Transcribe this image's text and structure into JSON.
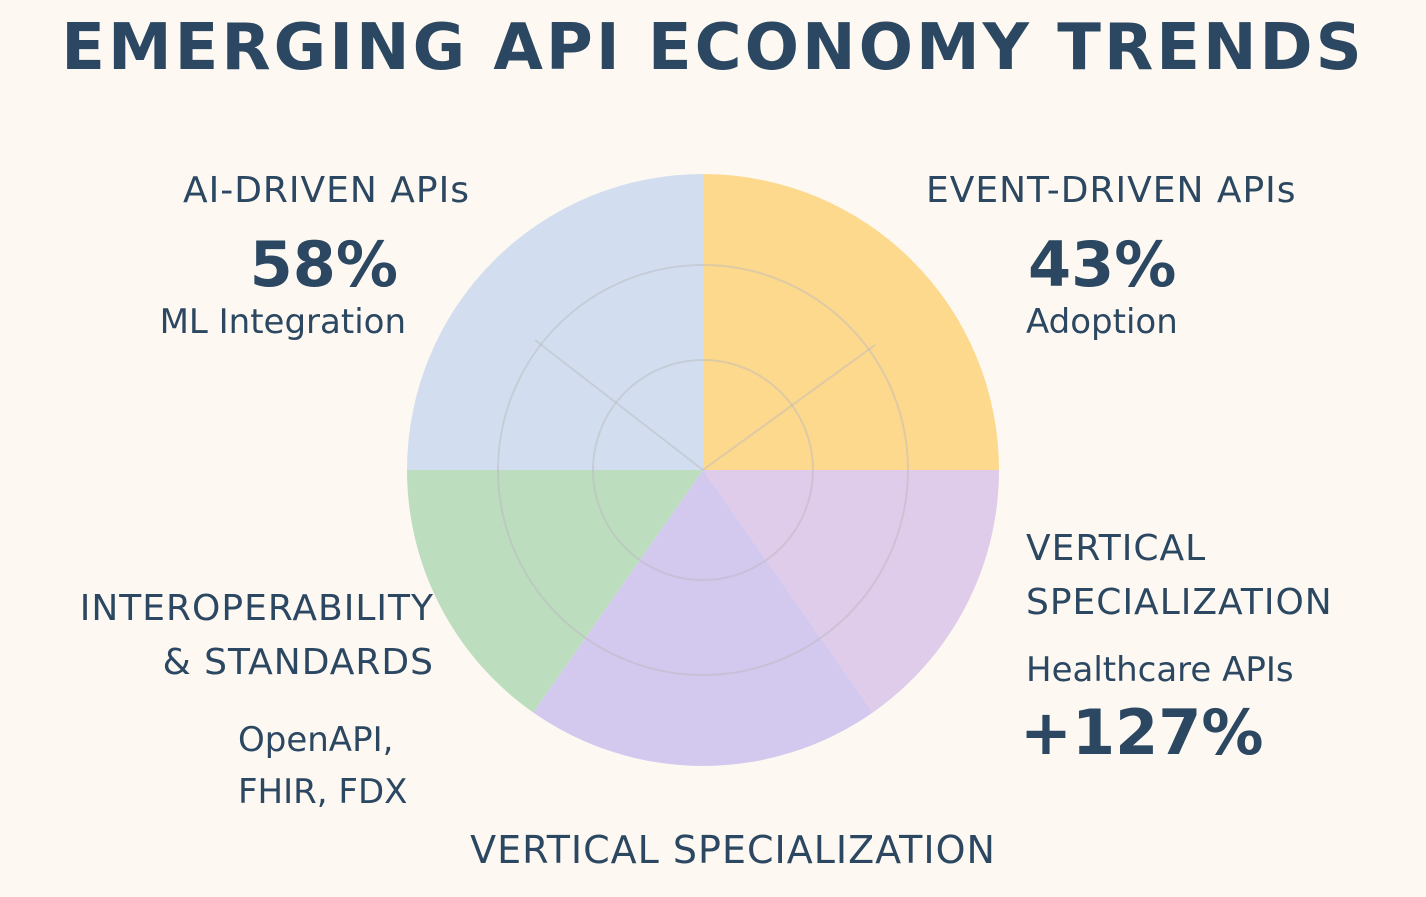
{
  "title": "EMERGING API ECONOMY TRENDS",
  "segments": [
    {
      "id": "ai",
      "heading": "AI-DRIVEN APIs",
      "value": "58%",
      "sub": "ML Integration",
      "color": "#d2deef"
    },
    {
      "id": "event",
      "heading": "EVENT-DRIVEN APIs",
      "value": "43%",
      "sub": "Adoption",
      "color": "#fdd98e"
    },
    {
      "id": "vertical",
      "heading_line1": "VERTICAL",
      "heading_line2": "SPECIALIZATION",
      "sub": "Healthcare APIs",
      "value": "+127%",
      "color": "#dfcbea"
    },
    {
      "id": "vertical-bottom",
      "color": "#d3c9ef"
    },
    {
      "id": "interop",
      "heading_line1": "INTEROPERABILITY",
      "heading_line2": "& STANDARDS",
      "sub_line1": "OpenAPI,",
      "sub_line2": "FHIR, FDX",
      "color": "#bdddbf"
    }
  ],
  "bottom_label": "VERTICAL SPECIALIZATION"
}
